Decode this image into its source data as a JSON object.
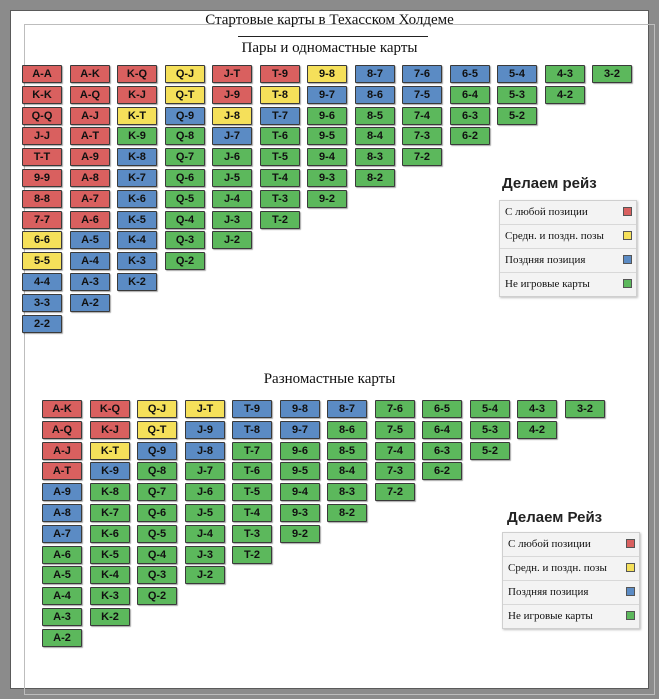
{
  "title": "Стартовые карты в Техасском Холдеме",
  "colors": {
    "red": "#d9605f",
    "yellow": "#f5e05a",
    "blue": "#5b8bc4",
    "green": "#5cb85c"
  },
  "sections": [
    {
      "subtitle": "Пары и одномастные карты",
      "raise_title": "Делаем рейз",
      "columns": [
        [
          [
            "A-A",
            "red"
          ],
          [
            "K-K",
            "red"
          ],
          [
            "Q-Q",
            "red"
          ],
          [
            "J-J",
            "red"
          ],
          [
            "T-T",
            "red"
          ],
          [
            "9-9",
            "red"
          ],
          [
            "8-8",
            "red"
          ],
          [
            "7-7",
            "red"
          ],
          [
            "6-6",
            "yellow"
          ],
          [
            "5-5",
            "yellow"
          ],
          [
            "4-4",
            "blue"
          ],
          [
            "3-3",
            "blue"
          ],
          [
            "2-2",
            "blue"
          ]
        ],
        [
          [
            "A-K",
            "red"
          ],
          [
            "A-Q",
            "red"
          ],
          [
            "A-J",
            "red"
          ],
          [
            "A-T",
            "red"
          ],
          [
            "A-9",
            "red"
          ],
          [
            "A-8",
            "red"
          ],
          [
            "A-7",
            "red"
          ],
          [
            "A-6",
            "red"
          ],
          [
            "A-5",
            "blue"
          ],
          [
            "A-4",
            "blue"
          ],
          [
            "A-3",
            "blue"
          ],
          [
            "A-2",
            "blue"
          ]
        ],
        [
          [
            "K-Q",
            "red"
          ],
          [
            "K-J",
            "red"
          ],
          [
            "K-T",
            "yellow"
          ],
          [
            "K-9",
            "green"
          ],
          [
            "K-8",
            "blue"
          ],
          [
            "K-7",
            "blue"
          ],
          [
            "K-6",
            "blue"
          ],
          [
            "K-5",
            "blue"
          ],
          [
            "K-4",
            "blue"
          ],
          [
            "K-3",
            "blue"
          ],
          [
            "K-2",
            "blue"
          ]
        ],
        [
          [
            "Q-J",
            "yellow"
          ],
          [
            "Q-T",
            "yellow"
          ],
          [
            "Q-9",
            "blue"
          ],
          [
            "Q-8",
            "green"
          ],
          [
            "Q-7",
            "green"
          ],
          [
            "Q-6",
            "green"
          ],
          [
            "Q-5",
            "green"
          ],
          [
            "Q-4",
            "green"
          ],
          [
            "Q-3",
            "green"
          ],
          [
            "Q-2",
            "green"
          ]
        ],
        [
          [
            "J-T",
            "red"
          ],
          [
            "J-9",
            "red"
          ],
          [
            "J-8",
            "yellow"
          ],
          [
            "J-7",
            "blue"
          ],
          [
            "J-6",
            "green"
          ],
          [
            "J-5",
            "green"
          ],
          [
            "J-4",
            "green"
          ],
          [
            "J-3",
            "green"
          ],
          [
            "J-2",
            "green"
          ]
        ],
        [
          [
            "T-9",
            "red"
          ],
          [
            "T-8",
            "yellow"
          ],
          [
            "T-7",
            "blue"
          ],
          [
            "T-6",
            "green"
          ],
          [
            "T-5",
            "green"
          ],
          [
            "T-4",
            "green"
          ],
          [
            "T-3",
            "green"
          ],
          [
            "T-2",
            "green"
          ]
        ],
        [
          [
            "9-8",
            "yellow"
          ],
          [
            "9-7",
            "blue"
          ],
          [
            "9-6",
            "green"
          ],
          [
            "9-5",
            "green"
          ],
          [
            "9-4",
            "green"
          ],
          [
            "9-3",
            "green"
          ],
          [
            "9-2",
            "green"
          ]
        ],
        [
          [
            "8-7",
            "blue"
          ],
          [
            "8-6",
            "blue"
          ],
          [
            "8-5",
            "green"
          ],
          [
            "8-4",
            "green"
          ],
          [
            "8-3",
            "green"
          ],
          [
            "8-2",
            "green"
          ]
        ],
        [
          [
            "7-6",
            "blue"
          ],
          [
            "7-5",
            "blue"
          ],
          [
            "7-4",
            "green"
          ],
          [
            "7-3",
            "green"
          ],
          [
            "7-2",
            "green"
          ]
        ],
        [
          [
            "6-5",
            "blue"
          ],
          [
            "6-4",
            "green"
          ],
          [
            "6-3",
            "green"
          ],
          [
            "6-2",
            "green"
          ]
        ],
        [
          [
            "5-4",
            "blue"
          ],
          [
            "5-3",
            "green"
          ],
          [
            "5-2",
            "green"
          ]
        ],
        [
          [
            "4-3",
            "green"
          ],
          [
            "4-2",
            "green"
          ]
        ],
        [
          [
            "3-2",
            "green"
          ]
        ]
      ],
      "legend": [
        {
          "label": "С любой позиции",
          "color": "red"
        },
        {
          "label": "Средн. и поздн. позы",
          "color": "yellow"
        },
        {
          "label": "Поздняя позиция",
          "color": "blue"
        },
        {
          "label": "Не игровые карты",
          "color": "green"
        }
      ]
    },
    {
      "subtitle": "Разномастные карты",
      "raise_title": "Делаем Рейз",
      "columns": [
        [
          [
            "A-K",
            "red"
          ],
          [
            "A-Q",
            "red"
          ],
          [
            "A-J",
            "red"
          ],
          [
            "A-T",
            "red"
          ],
          [
            "A-9",
            "blue"
          ],
          [
            "A-8",
            "blue"
          ],
          [
            "A-7",
            "blue"
          ],
          [
            "A-6",
            "green"
          ],
          [
            "A-5",
            "green"
          ],
          [
            "A-4",
            "green"
          ],
          [
            "A-3",
            "green"
          ],
          [
            "A-2",
            "green"
          ]
        ],
        [
          [
            "K-Q",
            "red"
          ],
          [
            "K-J",
            "red"
          ],
          [
            "K-T",
            "yellow"
          ],
          [
            "K-9",
            "blue"
          ],
          [
            "K-8",
            "green"
          ],
          [
            "K-7",
            "green"
          ],
          [
            "K-6",
            "green"
          ],
          [
            "K-5",
            "green"
          ],
          [
            "K-4",
            "green"
          ],
          [
            "K-3",
            "green"
          ],
          [
            "K-2",
            "green"
          ]
        ],
        [
          [
            "Q-J",
            "yellow"
          ],
          [
            "Q-T",
            "yellow"
          ],
          [
            "Q-9",
            "blue"
          ],
          [
            "Q-8",
            "green"
          ],
          [
            "Q-7",
            "green"
          ],
          [
            "Q-6",
            "green"
          ],
          [
            "Q-5",
            "green"
          ],
          [
            "Q-4",
            "green"
          ],
          [
            "Q-3",
            "green"
          ],
          [
            "Q-2",
            "green"
          ]
        ],
        [
          [
            "J-T",
            "yellow"
          ],
          [
            "J-9",
            "blue"
          ],
          [
            "J-8",
            "blue"
          ],
          [
            "J-7",
            "green"
          ],
          [
            "J-6",
            "green"
          ],
          [
            "J-5",
            "green"
          ],
          [
            "J-4",
            "green"
          ],
          [
            "J-3",
            "green"
          ],
          [
            "J-2",
            "green"
          ]
        ],
        [
          [
            "T-9",
            "blue"
          ],
          [
            "T-8",
            "blue"
          ],
          [
            "T-7",
            "green"
          ],
          [
            "T-6",
            "green"
          ],
          [
            "T-5",
            "green"
          ],
          [
            "T-4",
            "green"
          ],
          [
            "T-3",
            "green"
          ],
          [
            "T-2",
            "green"
          ]
        ],
        [
          [
            "9-8",
            "blue"
          ],
          [
            "9-7",
            "blue"
          ],
          [
            "9-6",
            "green"
          ],
          [
            "9-5",
            "green"
          ],
          [
            "9-4",
            "green"
          ],
          [
            "9-3",
            "green"
          ],
          [
            "9-2",
            "green"
          ]
        ],
        [
          [
            "8-7",
            "blue"
          ],
          [
            "8-6",
            "green"
          ],
          [
            "8-5",
            "green"
          ],
          [
            "8-4",
            "green"
          ],
          [
            "8-3",
            "green"
          ],
          [
            "8-2",
            "green"
          ]
        ],
        [
          [
            "7-6",
            "green"
          ],
          [
            "7-5",
            "green"
          ],
          [
            "7-4",
            "green"
          ],
          [
            "7-3",
            "green"
          ],
          [
            "7-2",
            "green"
          ]
        ],
        [
          [
            "6-5",
            "green"
          ],
          [
            "6-4",
            "green"
          ],
          [
            "6-3",
            "green"
          ],
          [
            "6-2",
            "green"
          ]
        ],
        [
          [
            "5-4",
            "green"
          ],
          [
            "5-3",
            "green"
          ],
          [
            "5-2",
            "green"
          ]
        ],
        [
          [
            "4-3",
            "green"
          ],
          [
            "4-2",
            "green"
          ]
        ],
        [
          [
            "3-2",
            "green"
          ]
        ]
      ],
      "legend": [
        {
          "label": "С любой позиции",
          "color": "red"
        },
        {
          "label": "Средн. и поздн. позы",
          "color": "yellow"
        },
        {
          "label": "Поздняя позиция",
          "color": "blue"
        },
        {
          "label": "Не игровые карты",
          "color": "green"
        }
      ]
    }
  ]
}
